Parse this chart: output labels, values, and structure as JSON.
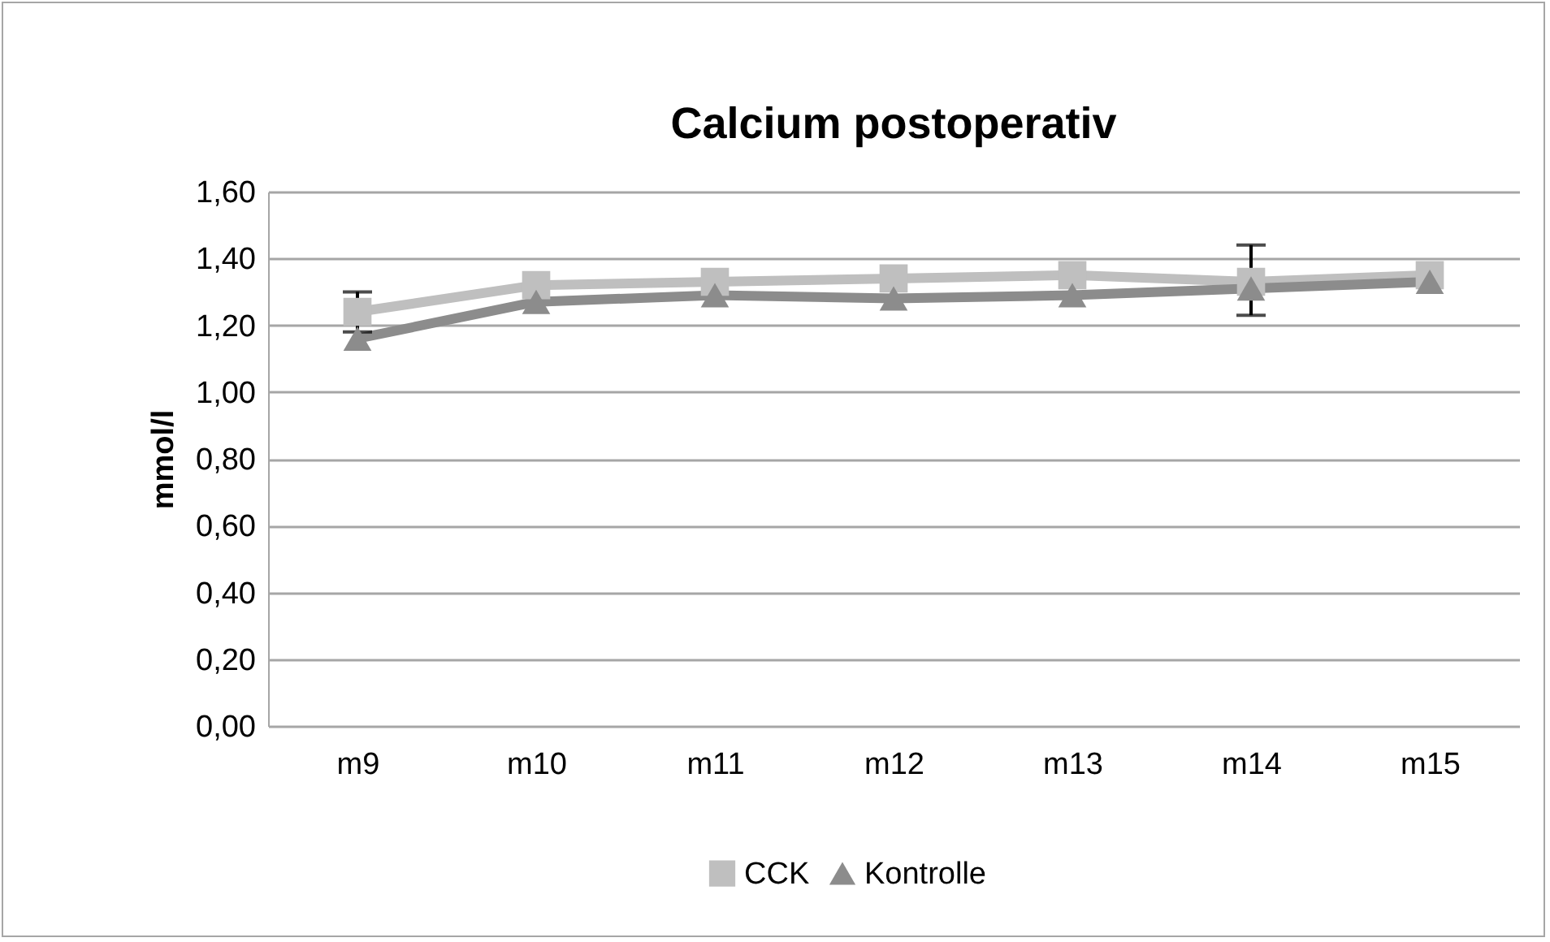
{
  "chart_data": {
    "type": "line",
    "title": "Calcium postoperativ",
    "ylabel": "mmol/l",
    "categories": [
      "m9",
      "m10",
      "m11",
      "m12",
      "m13",
      "m14",
      "m15"
    ],
    "series": [
      {
        "name": "CCK",
        "color": "#bfbfbf",
        "marker": "square",
        "values": [
          1.24,
          1.32,
          1.33,
          1.34,
          1.35,
          1.33,
          1.35
        ],
        "errors": [
          [
            1.18,
            1.3
          ],
          null,
          null,
          null,
          null,
          [
            1.23,
            1.44
          ],
          null
        ]
      },
      {
        "name": "Kontrolle",
        "color": "#8c8c8c",
        "marker": "triangle",
        "values": [
          1.16,
          1.27,
          1.29,
          1.28,
          1.29,
          1.31,
          1.33
        ]
      }
    ],
    "ylim": [
      0,
      1.6
    ],
    "yticks": [
      {
        "value": 0,
        "label": "0,00"
      },
      {
        "value": 0.2,
        "label": "0,20"
      },
      {
        "value": 0.4,
        "label": "0,40"
      },
      {
        "value": 0.6,
        "label": "0,60"
      },
      {
        "value": 0.8,
        "label": "0,80"
      },
      {
        "value": 1.0,
        "label": "1,00"
      },
      {
        "value": 1.2,
        "label": "1,20"
      },
      {
        "value": 1.4,
        "label": "1,40"
      },
      {
        "value": 1.6,
        "label": "1,60"
      }
    ],
    "grid": "y",
    "legend": "bottom"
  }
}
